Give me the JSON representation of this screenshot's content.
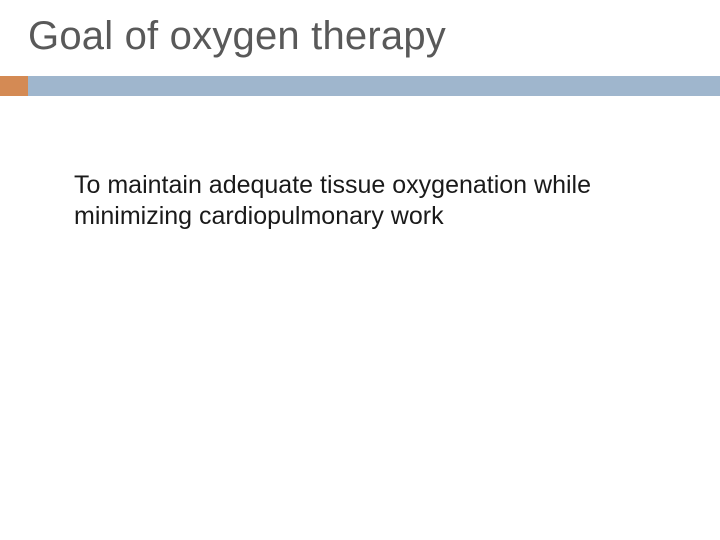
{
  "slide": {
    "title": "Goal of oxygen therapy",
    "body": "To maintain adequate tissue oxygenation while minimizing cardiopulmonary work"
  },
  "styling": {
    "background_color": "#ffffff",
    "title_color": "#595959",
    "title_fontsize": 40,
    "body_color": "#1a1a1a",
    "body_fontsize": 25,
    "accent_orange": "#d48a54",
    "accent_blue": "#9fb6cd",
    "accent_bar_height": 20,
    "accent_orange_width": 28,
    "font_family": "Arial"
  }
}
